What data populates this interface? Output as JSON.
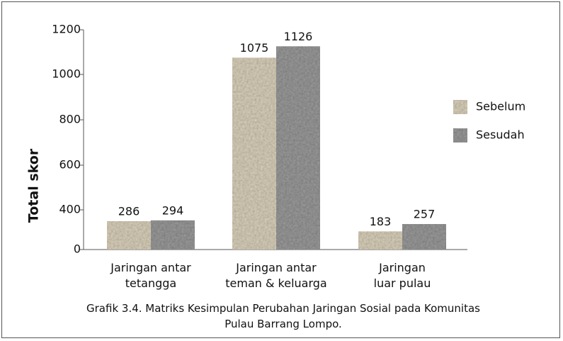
{
  "chart_data": {
    "type": "bar",
    "y_label": "Total skor",
    "caption": "Grafik 3.4. Matriks Kesimpulan Perubahan Jaringan Sosial pada Komunitas Pulau Barrang Lompo.",
    "categories": [
      [
        "Jaringan antar",
        "tetangga"
      ],
      [
        "Jaringan antar",
        "teman & keluarga"
      ],
      [
        "Jaringan",
        "luar pulau"
      ]
    ],
    "series": [
      {
        "name": "Sebelum",
        "color": "#ddd3bd",
        "values": [
          286,
          1075,
          183
        ]
      },
      {
        "name": "Sesudah",
        "color": "#9c9c9c",
        "values": [
          294,
          1126,
          257
        ]
      }
    ],
    "ylim": [
      0,
      1200
    ],
    "yticks": [
      0,
      400,
      600,
      800,
      1000,
      1200
    ],
    "legend": "right"
  }
}
